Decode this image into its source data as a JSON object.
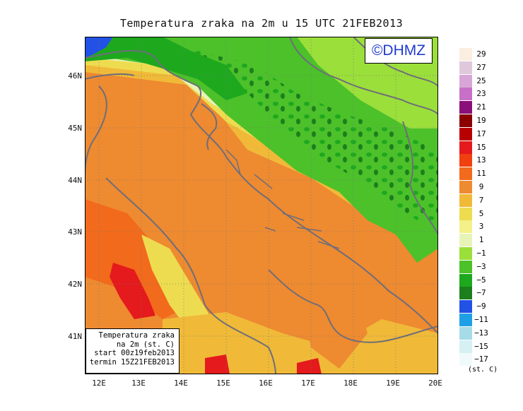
{
  "title": "Temperatura zraka na 2m u 15 UTC 21FEB2013",
  "watermark": "©DHMZ",
  "info_box": {
    "line1": "Temperatura zraka",
    "line2": "na 2m (st. C)",
    "line3": "start 00z19feb2013",
    "line4": "termin 15Z21FEB2013"
  },
  "axes": {
    "lat_labels": [
      "46N",
      "45N",
      "44N",
      "43N",
      "42N",
      "41N"
    ],
    "lon_labels": [
      "12E",
      "13E",
      "14E",
      "15E",
      "16E",
      "17E",
      "18E",
      "19E",
      "20E"
    ]
  },
  "legend": {
    "labels": [
      "29",
      "27",
      "25",
      "23",
      "21",
      "19",
      "17",
      "15",
      "13",
      "11",
      "9",
      "7",
      "5",
      "3",
      "1",
      "−1",
      "−3",
      "−5",
      "−7",
      "−9",
      "−11",
      "−13",
      "−15",
      "−17"
    ],
    "colors": [
      "#fbeee0",
      "#e0c8dc",
      "#d8a6d6",
      "#c870c8",
      "#8b0f7a",
      "#8a0000",
      "#b80000",
      "#e41a1c",
      "#f04010",
      "#f26a1b",
      "#ee8a30",
      "#f0ba38",
      "#eedc50",
      "#f4f08a",
      "#e8f3b8",
      "#9bdf3a",
      "#4cc12a",
      "#1ea81e",
      "#1c7f1c",
      "#2251e6",
      "#1fa0e6",
      "#a6dce8",
      "#d7f0f4",
      "#f0fafb"
    ],
    "units": "(st. C)"
  }
}
